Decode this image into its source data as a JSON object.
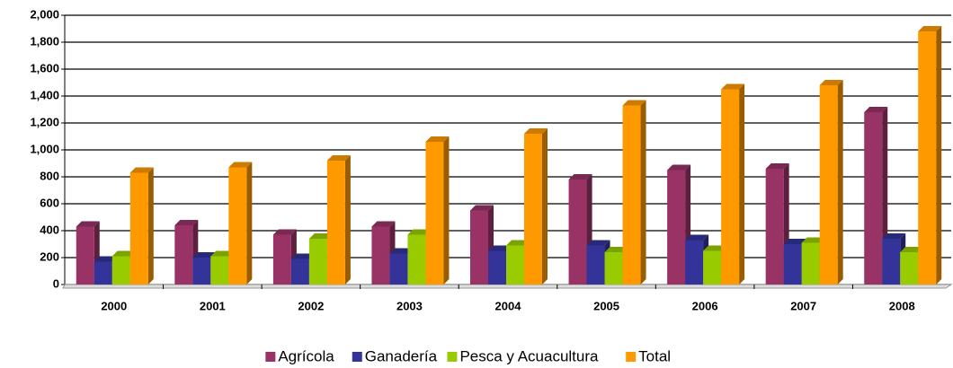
{
  "chart_data": {
    "type": "bar",
    "categories": [
      "2000",
      "2001",
      "2002",
      "2003",
      "2004",
      "2005",
      "2006",
      "2007",
      "2008"
    ],
    "series": [
      {
        "name": "Agrícola",
        "color": "#993366",
        "values": [
          430,
          440,
          370,
          430,
          550,
          780,
          850,
          860,
          1280
        ]
      },
      {
        "name": "Ganadería",
        "color": "#333399",
        "values": [
          170,
          200,
          190,
          230,
          250,
          290,
          330,
          300,
          340
        ]
      },
      {
        "name": "Pesca y Acuacultura",
        "color": "#99cc00",
        "values": [
          210,
          210,
          340,
          370,
          290,
          240,
          250,
          310,
          240
        ]
      },
      {
        "name": "Total",
        "color": "#ff9900",
        "values": [
          830,
          870,
          920,
          1060,
          1120,
          1330,
          1450,
          1480,
          1880
        ]
      }
    ],
    "ylim": [
      0,
      2000
    ],
    "yticks": [
      0,
      200,
      400,
      600,
      800,
      {
        "value": 1000,
        "label": "1,000"
      },
      {
        "value": 1200,
        "label": "1,200"
      },
      {
        "value": 1400,
        "label": "1,400"
      },
      {
        "value": 1600,
        "label": "1,600"
      },
      {
        "value": 1800,
        "label": "1,800"
      },
      {
        "value": 2000,
        "label": "2,000"
      }
    ],
    "grid": true,
    "legend": "bottom"
  }
}
